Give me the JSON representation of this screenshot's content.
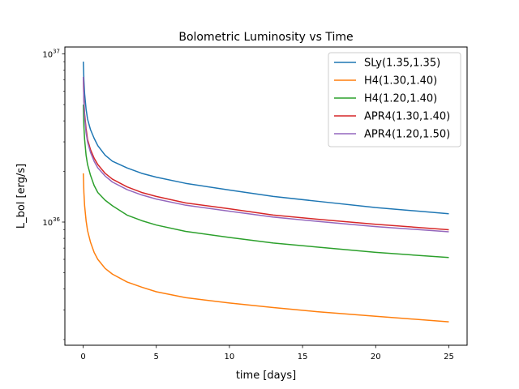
{
  "chart_data": {
    "type": "line",
    "title": "Bolometric Luminosity vs Time",
    "xlabel": "time [days]",
    "ylabel": "L_bol [erg/s]",
    "xscale": "linear",
    "yscale": "log",
    "xlim": [
      -1.25,
      26.25
    ],
    "ylim": [
      1.85e+35,
      1.1e+37
    ],
    "x_ticks": [
      0,
      5,
      10,
      15,
      20,
      25
    ],
    "y_major_ticks": [
      {
        "value": 1e+36,
        "base": "10",
        "exp": "36"
      },
      {
        "value": 1e+37,
        "base": "10",
        "exp": "37"
      }
    ],
    "grid": false,
    "legend_position": "upper right",
    "x": [
      0.01,
      0.05,
      0.1,
      0.2,
      0.3,
      0.5,
      0.75,
      1,
      1.5,
      2,
      3,
      4,
      5,
      7,
      10,
      13,
      16,
      20,
      25
    ],
    "series": [
      {
        "name": "SLy(1.35,1.35)",
        "color": "#1f77b4",
        "values": [
          9e+36,
          7e+36,
          5.8e+36,
          4.7e+36,
          4.1e+36,
          3.55e+36,
          3.15e+36,
          2.85e+36,
          2.5e+36,
          2.3e+36,
          2.1e+36,
          1.95e+36,
          1.85e+36,
          1.7e+36,
          1.55e+36,
          1.42e+36,
          1.33e+36,
          1.22e+36,
          1.12e+36
        ]
      },
      {
        "name": "H4(1.30,1.40)",
        "color": "#ff7f0e",
        "values": [
          1.95e+36,
          1.5e+36,
          1.25e+36,
          1.02e+36,
          8.9e+35,
          7.6e+35,
          6.6e+35,
          6e+35,
          5.3e+35,
          4.9e+35,
          4.4e+35,
          4.1e+35,
          3.85e+35,
          3.55e+35,
          3.3e+35,
          3.1e+35,
          2.93e+35,
          2.75e+35,
          2.55e+35
        ]
      },
      {
        "name": "H4(1.20,1.40)",
        "color": "#2ca02c",
        "values": [
          5e+36,
          3.7e+36,
          3.1e+36,
          2.5e+36,
          2.2e+36,
          1.9e+36,
          1.65e+36,
          1.5e+36,
          1.35e+36,
          1.25e+36,
          1.1e+36,
          1.02e+36,
          9.6e+35,
          8.8e+35,
          8.1e+35,
          7.5e+35,
          7.1e+35,
          6.6e+35,
          6.15e+35
        ]
      },
      {
        "name": "APR4(1.30,1.40)",
        "color": "#d62728",
        "values": [
          7.3e+36,
          5.4e+36,
          4.4e+36,
          3.6e+36,
          3.1e+36,
          2.7e+36,
          2.4e+36,
          2.2e+36,
          1.95e+36,
          1.8e+36,
          1.62e+36,
          1.5e+36,
          1.42e+36,
          1.3e+36,
          1.2e+36,
          1.1e+36,
          1.04e+36,
          9.7e+35,
          9e+35
        ]
      },
      {
        "name": "APR4(1.20,1.50)",
        "color": "#9467bd",
        "values": [
          7.3e+36,
          5.2e+36,
          4.2e+36,
          3.4e+36,
          3e+36,
          2.6e+36,
          2.3e+36,
          2.1e+36,
          1.88e+36,
          1.73e+36,
          1.56e+36,
          1.45e+36,
          1.37e+36,
          1.26e+36,
          1.16e+36,
          1.07e+36,
          1.01e+36,
          9.4e+35,
          8.75e+35
        ]
      }
    ]
  }
}
